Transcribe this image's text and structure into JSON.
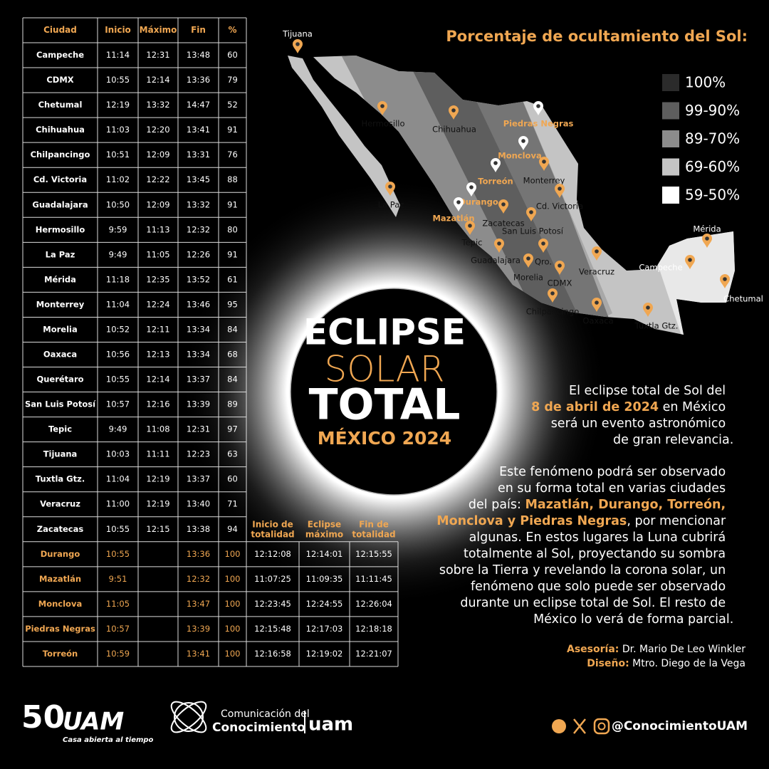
{
  "table": {
    "header": [
      "Ciudad",
      "Inicio",
      "Máximo",
      "Fin",
      "%"
    ],
    "rows": [
      [
        "Campeche",
        "11:14",
        "12:31",
        "13:48",
        "60"
      ],
      [
        "CDMX",
        "10:55",
        "12:14",
        "13:36",
        "79"
      ],
      [
        "Chetumal",
        "12:19",
        "13:32",
        "14:47",
        "52"
      ],
      [
        "Chihuahua",
        "11:03",
        "12:20",
        "13:41",
        "91"
      ],
      [
        "Chilpancingo",
        "10:51",
        "12:09",
        "13:31",
        "76"
      ],
      [
        "Cd. Victoria",
        "11:02",
        "12:22",
        "13:45",
        "88"
      ],
      [
        "Guadalajara",
        "10:50",
        "12:09",
        "13:32",
        "91"
      ],
      [
        "Hermosillo",
        "9:59",
        "11:13",
        "12:32",
        "80"
      ],
      [
        "La Paz",
        "9:49",
        "11:05",
        "12:26",
        "91"
      ],
      [
        "Mérida",
        "11:18",
        "12:35",
        "13:52",
        "61"
      ],
      [
        "Monterrey",
        "11:04",
        "12:24",
        "13:46",
        "95"
      ],
      [
        "Morelia",
        "10:52",
        "12:11",
        "13:34",
        "84"
      ],
      [
        "Oaxaca",
        "10:56",
        "12:13",
        "13:34",
        "68"
      ],
      [
        "Querétaro",
        "10:55",
        "12:14",
        "13:37",
        "84"
      ],
      [
        "San Luis Potosí",
        "10:57",
        "12:16",
        "13:39",
        "89"
      ],
      [
        "Tepic",
        "9:49",
        "11:08",
        "12:31",
        "97"
      ],
      [
        "Tijuana",
        "10:03",
        "11:11",
        "12:23",
        "63"
      ],
      [
        "Tuxtla Gtz.",
        "11:04",
        "12:19",
        "13:37",
        "60"
      ],
      [
        "Veracruz",
        "11:00",
        "12:19",
        "13:40",
        "71"
      ],
      [
        "Zacatecas",
        "10:55",
        "12:15",
        "13:38",
        "94"
      ]
    ],
    "totality_header": [
      [
        "Inicio de",
        "totalidad"
      ],
      [
        "Eclipse",
        "máximo"
      ],
      [
        "Fin de",
        "totalidad"
      ]
    ],
    "totality_rows": [
      [
        "Durango",
        "10:55",
        "13:36",
        "100",
        "12:12:08",
        "12:14:01",
        "12:15:55"
      ],
      [
        "Mazatlán",
        "9:51",
        "12:32",
        "100",
        "11:07:25",
        "11:09:35",
        "11:11:45"
      ],
      [
        "Monclova",
        "11:05",
        "13:47",
        "100",
        "12:23:45",
        "12:24:55",
        "12:26:04"
      ],
      [
        "Piedras Negras",
        "10:57",
        "13:39",
        "100",
        "12:15:48",
        "12:17:03",
        "12:18:18"
      ],
      [
        "Torreón",
        "10:59",
        "13:41",
        "100",
        "12:16:58",
        "12:19:02",
        "12:21:07"
      ]
    ]
  },
  "title": {
    "line1": "ECLIPSE",
    "line2": "SOLAR",
    "line3": "TOTAL",
    "line4": "MÉXICO 2024"
  },
  "legend": {
    "title": "Porcentaje de ocultamiento del Sol:",
    "items": [
      {
        "label": "100%",
        "color": "#2b2b2b"
      },
      {
        "label": "99-90%",
        "color": "#5e5e5e"
      },
      {
        "label": "89-70%",
        "color": "#8c8c8c"
      },
      {
        "label": "69-60%",
        "color": "#c4c4c4"
      },
      {
        "label": "59-50%",
        "color": "#ffffff"
      }
    ]
  },
  "map": {
    "cities": [
      "Tijuana",
      "Hermosillo",
      "Chihuahua",
      "La Paz",
      "Monterrey",
      "Cd. Victoria",
      "Zacatecas",
      "San Luis Potosí",
      "Tepic",
      "Guadalajara",
      "Qro.",
      "Morelia",
      "CDMX",
      "Veracruz",
      "Chilpancingo",
      "Oaxaca",
      "Tuxtla Gtz.",
      "Mérida",
      "Campeche",
      "Chetumal"
    ],
    "totality_cities": [
      "Piedras Negras",
      "Monclova",
      "Torreón",
      "Durango",
      "Mazatlán"
    ]
  },
  "intro": [
    [
      "El eclipse total de Sol del"
    ],
    [
      "8 de abril de 2024",
      " en México"
    ],
    [
      "será un evento astronómico"
    ],
    [
      "de gran relevancia."
    ]
  ],
  "body": [
    [
      "Este fenómeno podrá ser observado"
    ],
    [
      "en su forma total en varias ciudades"
    ],
    [
      "del país: ",
      "Mazatlán, Durango, Torreón,"
    ],
    [
      "Monclova y Piedras Negras",
      ", por mencionar"
    ],
    [
      "algunas. En estos lugares la Luna cubrirá"
    ],
    [
      "totalmente al Sol, proyectando su sombra"
    ],
    [
      "sobre la Tierra y revelando la corona solar, un"
    ],
    [
      "fenómeno que solo puede ser observado"
    ],
    [
      "durante un eclipse total de Sol. El resto de"
    ],
    [
      "México lo verá de forma parcial."
    ]
  ],
  "credits": [
    [
      "Asesoría:",
      " Dr. Mario De Leo Winkler"
    ],
    [
      "Diseño:",
      " Mtro. Diego de la Vega"
    ]
  ],
  "footer": {
    "logo_number": "50",
    "logo_text": "UAM",
    "tagline": "Casa abierta al tiempo",
    "unit_line1": "Comunicación del",
    "unit_line2": "Conocimiento",
    "unit_brand": "uam",
    "handle": "@ConocimientoUAM"
  }
}
